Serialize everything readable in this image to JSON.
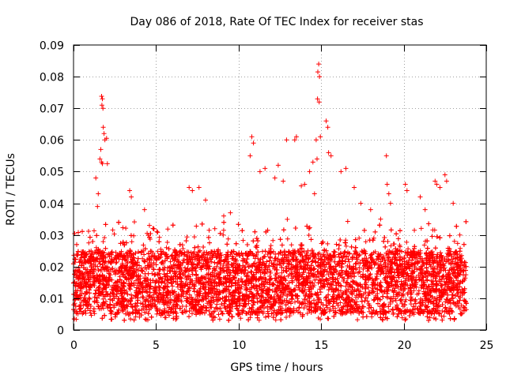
{
  "chart_data": {
    "type": "scatter",
    "title": "Day 086 of 2018, Rate Of TEC Index for receiver stas",
    "xlabel": "GPS time / hours",
    "ylabel": "ROTI / TECUs",
    "xlim": [
      0,
      25
    ],
    "ylim": [
      0,
      0.09
    ],
    "x_ticks": [
      0,
      5,
      10,
      15,
      20,
      25
    ],
    "y_ticks": [
      0,
      0.01,
      0.02,
      0.03,
      0.04,
      0.05,
      0.06,
      0.07,
      0.08,
      0.09
    ],
    "x_tick_labels": [
      "0",
      "5",
      "10",
      "15",
      "20",
      "25"
    ],
    "y_tick_labels": [
      "0",
      "0.01",
      "0.02",
      "0.03",
      "0.04",
      "0.05",
      "0.06",
      "0.07",
      "0.08",
      "0.09"
    ],
    "grid": true,
    "marker": "plus",
    "color": "#ff0000",
    "data_x_range": [
      0,
      23.8
    ],
    "series": [
      {
        "name": "ROTI",
        "points": [
          [
            1.7,
            0.0738
          ],
          [
            1.75,
            0.073
          ],
          [
            1.72,
            0.071
          ],
          [
            1.78,
            0.07
          ],
          [
            1.8,
            0.064
          ],
          [
            1.85,
            0.062
          ],
          [
            1.9,
            0.06
          ],
          [
            2.0,
            0.0605
          ],
          [
            1.65,
            0.057
          ],
          [
            1.6,
            0.054
          ],
          [
            1.7,
            0.053
          ],
          [
            1.75,
            0.0525
          ],
          [
            2.05,
            0.0525
          ],
          [
            1.35,
            0.048
          ],
          [
            1.5,
            0.043
          ],
          [
            1.45,
            0.039
          ],
          [
            3.4,
            0.044
          ],
          [
            3.5,
            0.042
          ],
          [
            4.3,
            0.038
          ],
          [
            4.6,
            0.033
          ],
          [
            7.0,
            0.045
          ],
          [
            7.2,
            0.044
          ],
          [
            7.6,
            0.045
          ],
          [
            8.0,
            0.041
          ],
          [
            9.1,
            0.036
          ],
          [
            9.5,
            0.037
          ],
          [
            10.8,
            0.061
          ],
          [
            10.9,
            0.059
          ],
          [
            10.7,
            0.055
          ],
          [
            11.3,
            0.05
          ],
          [
            11.6,
            0.051
          ],
          [
            12.2,
            0.048
          ],
          [
            12.4,
            0.052
          ],
          [
            12.7,
            0.047
          ],
          [
            12.9,
            0.06
          ],
          [
            13.4,
            0.06
          ],
          [
            13.5,
            0.061
          ],
          [
            13.8,
            0.0455
          ],
          [
            14.0,
            0.046
          ],
          [
            14.3,
            0.05
          ],
          [
            14.5,
            0.053
          ],
          [
            14.6,
            0.043
          ],
          [
            14.85,
            0.084
          ],
          [
            14.8,
            0.0815
          ],
          [
            14.9,
            0.08
          ],
          [
            14.78,
            0.073
          ],
          [
            14.88,
            0.072
          ],
          [
            14.7,
            0.06
          ],
          [
            14.95,
            0.061
          ],
          [
            14.75,
            0.054
          ],
          [
            15.3,
            0.066
          ],
          [
            15.4,
            0.064
          ],
          [
            15.45,
            0.056
          ],
          [
            15.6,
            0.055
          ],
          [
            16.2,
            0.05
          ],
          [
            16.5,
            0.051
          ],
          [
            17.0,
            0.045
          ],
          [
            17.4,
            0.04
          ],
          [
            18.0,
            0.038
          ],
          [
            18.6,
            0.035
          ],
          [
            18.95,
            0.055
          ],
          [
            19.0,
            0.046
          ],
          [
            19.1,
            0.043
          ],
          [
            19.2,
            0.04
          ],
          [
            20.1,
            0.046
          ],
          [
            20.2,
            0.044
          ],
          [
            21.0,
            0.042
          ],
          [
            21.3,
            0.038
          ],
          [
            21.9,
            0.047
          ],
          [
            22.0,
            0.046
          ],
          [
            22.2,
            0.045
          ],
          [
            22.5,
            0.049
          ],
          [
            22.6,
            0.047
          ],
          [
            23.0,
            0.04
          ],
          [
            23.4,
            0.03
          ]
        ]
      }
    ],
    "dense_band": {
      "description": "thousands of overlapping points",
      "typical_range": [
        0.005,
        0.025
      ],
      "extends_to": 0.035,
      "min": 0.003
    }
  }
}
